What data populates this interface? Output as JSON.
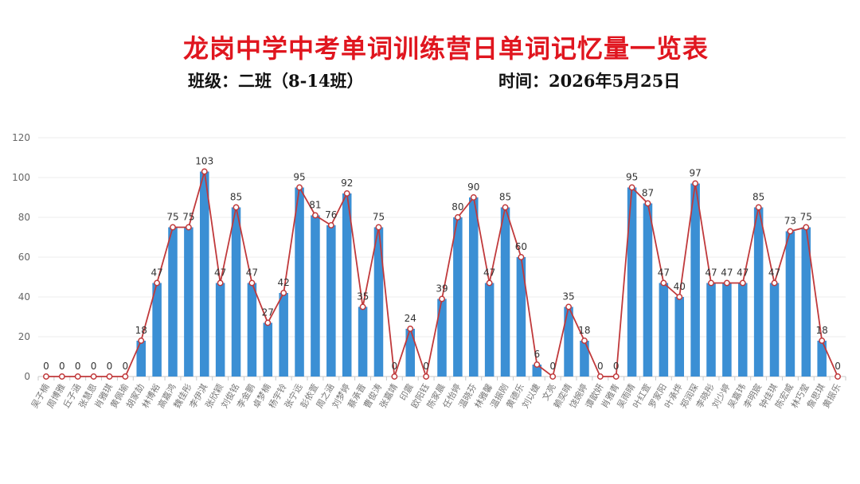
{
  "header": {
    "title": "龙岗中学中考单词训练营日单词记忆量一览表",
    "class_label": "班级：二班（8-14班）",
    "date_label": "时间：2026年5月25日"
  },
  "colors": {
    "bar": "#3b8fd4",
    "line": "#c0393b",
    "title": "#e0161f"
  },
  "chart_data": {
    "type": "bar",
    "ylim": [
      0,
      120
    ],
    "yticks": [
      0,
      20,
      40,
      60,
      80,
      100,
      120
    ],
    "grid": true,
    "categories": [
      "吴子楠",
      "周博雅",
      "丘子涵",
      "张慧恩",
      "肖雅琪",
      "黄佩瑜",
      "胡家劼",
      "林博裕",
      "高嘉鸿",
      "魏佳彤",
      "李伊淇",
      "张欣颖",
      "刘俊铭",
      "李金鹏",
      "卓梦楠",
      "杨宇铃",
      "张宁远",
      "彭依萱",
      "周之涵",
      "刘梦婷",
      "蔡承晋",
      "曹俊涛",
      "张嘉靖",
      "印震",
      "欧阳钰",
      "陈家晨",
      "任怡婷",
      "温晓芬",
      "林雅馨",
      "温振刚",
      "黄德乐",
      "刘以婕",
      "文亮",
      "赖奕晴",
      "饶婉婷",
      "谭歆妍",
      "肖雅青",
      "吴雨晴",
      "叶红萱",
      "罗家阳",
      "叶承烨",
      "郑润琛",
      "李晓彤",
      "刘少婷",
      "吴嘉玮",
      "李明宸",
      "钟佳琪",
      "陈宏威",
      "林巧莹",
      "詹思琪",
      "黄振乐"
    ],
    "values": [
      0,
      0,
      0,
      0,
      0,
      0,
      18,
      47,
      75,
      75,
      103,
      47,
      85,
      47,
      27,
      42,
      95,
      81,
      76,
      92,
      35,
      75,
      0,
      24,
      0,
      39,
      80,
      90,
      47,
      85,
      60,
      6,
      0,
      35,
      18,
      0,
      0,
      95,
      87,
      47,
      40,
      97,
      47,
      47,
      47,
      85,
      47,
      73,
      75,
      18,
      0
    ],
    "series": [
      {
        "type": "bar",
        "values": [
          0,
          0,
          0,
          0,
          0,
          0,
          18,
          47,
          75,
          75,
          103,
          47,
          85,
          47,
          27,
          42,
          95,
          81,
          76,
          92,
          35,
          75,
          0,
          24,
          0,
          39,
          80,
          90,
          47,
          85,
          60,
          6,
          0,
          35,
          18,
          0,
          0,
          95,
          87,
          47,
          40,
          97,
          47,
          47,
          47,
          85,
          47,
          73,
          75,
          18,
          0
        ]
      },
      {
        "type": "line",
        "values": [
          0,
          0,
          0,
          0,
          0,
          0,
          18,
          47,
          75,
          75,
          103,
          47,
          85,
          47,
          27,
          42,
          95,
          81,
          76,
          92,
          35,
          75,
          0,
          24,
          0,
          39,
          80,
          90,
          47,
          85,
          60,
          6,
          0,
          35,
          18,
          0,
          0,
          95,
          87,
          47,
          40,
          97,
          47,
          47,
          47,
          85,
          47,
          73,
          75,
          18,
          0
        ]
      }
    ]
  }
}
